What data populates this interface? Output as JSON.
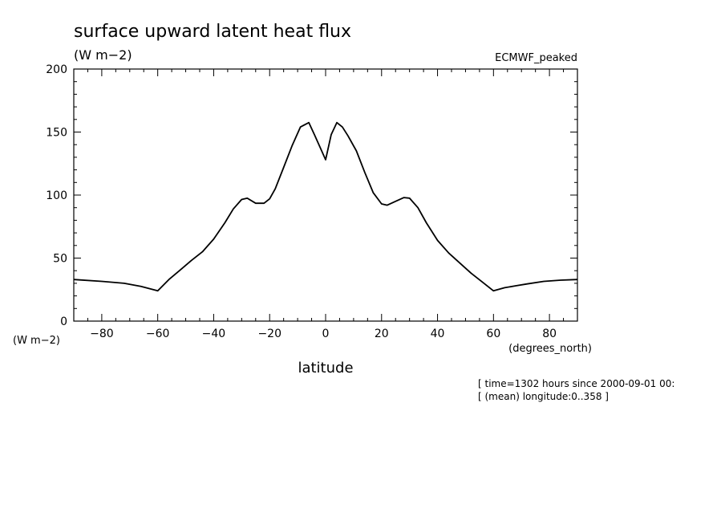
{
  "chart_data": {
    "type": "line",
    "title": "surface upward latent heat flux",
    "units_label": "(W m−2)",
    "source_label": "ECMWF_peaked",
    "ylabel": "(W m−2)",
    "xlabel": "latitude",
    "x_units_label": "(degrees_north)",
    "xlim": [
      -90,
      90
    ],
    "ylim": [
      0,
      200
    ],
    "x_ticks": [
      -80,
      -60,
      -40,
      -20,
      0,
      20,
      40,
      60,
      80
    ],
    "x_tick_labels": [
      "−80",
      "−60",
      "−40",
      "−20",
      "0",
      "20",
      "40",
      "60",
      "80"
    ],
    "y_ticks": [
      0,
      50,
      100,
      150,
      200
    ],
    "y_tick_labels": [
      "0",
      "50",
      "100",
      "150",
      "200"
    ],
    "grid": false,
    "info_lines": [
      "[ time=1302 hours since 2000-09-01 00:",
      "[ (mean) longitude:0..358 ]"
    ],
    "series": [
      {
        "x": [
          -90,
          -80,
          -72,
          -66,
          -60,
          -56,
          -52,
          -48,
          -44,
          -40,
          -36,
          -33,
          -30,
          -28,
          -25,
          -22,
          -20,
          -18,
          -15,
          -12,
          -9,
          -6,
          -4,
          -2,
          0,
          1,
          2,
          4,
          6,
          8,
          11,
          14,
          17,
          20,
          22,
          25,
          28,
          30,
          33,
          36,
          40,
          44,
          48,
          52,
          56,
          60,
          64,
          68,
          72,
          78,
          84,
          90
        ],
        "y": [
          33,
          31.5,
          30,
          27.5,
          24,
          33,
          40.5,
          48,
          55,
          65,
          78,
          89,
          96.5,
          97.5,
          93.5,
          93.5,
          97,
          105,
          122,
          139,
          154,
          157.5,
          148,
          138,
          128,
          138,
          148,
          157.5,
          154,
          147,
          135,
          118,
          102,
          93,
          92,
          95,
          98,
          97.5,
          90,
          78,
          64,
          54,
          46,
          38,
          31,
          24,
          26.5,
          28,
          29.5,
          31.5,
          32.5,
          33
        ]
      }
    ]
  }
}
